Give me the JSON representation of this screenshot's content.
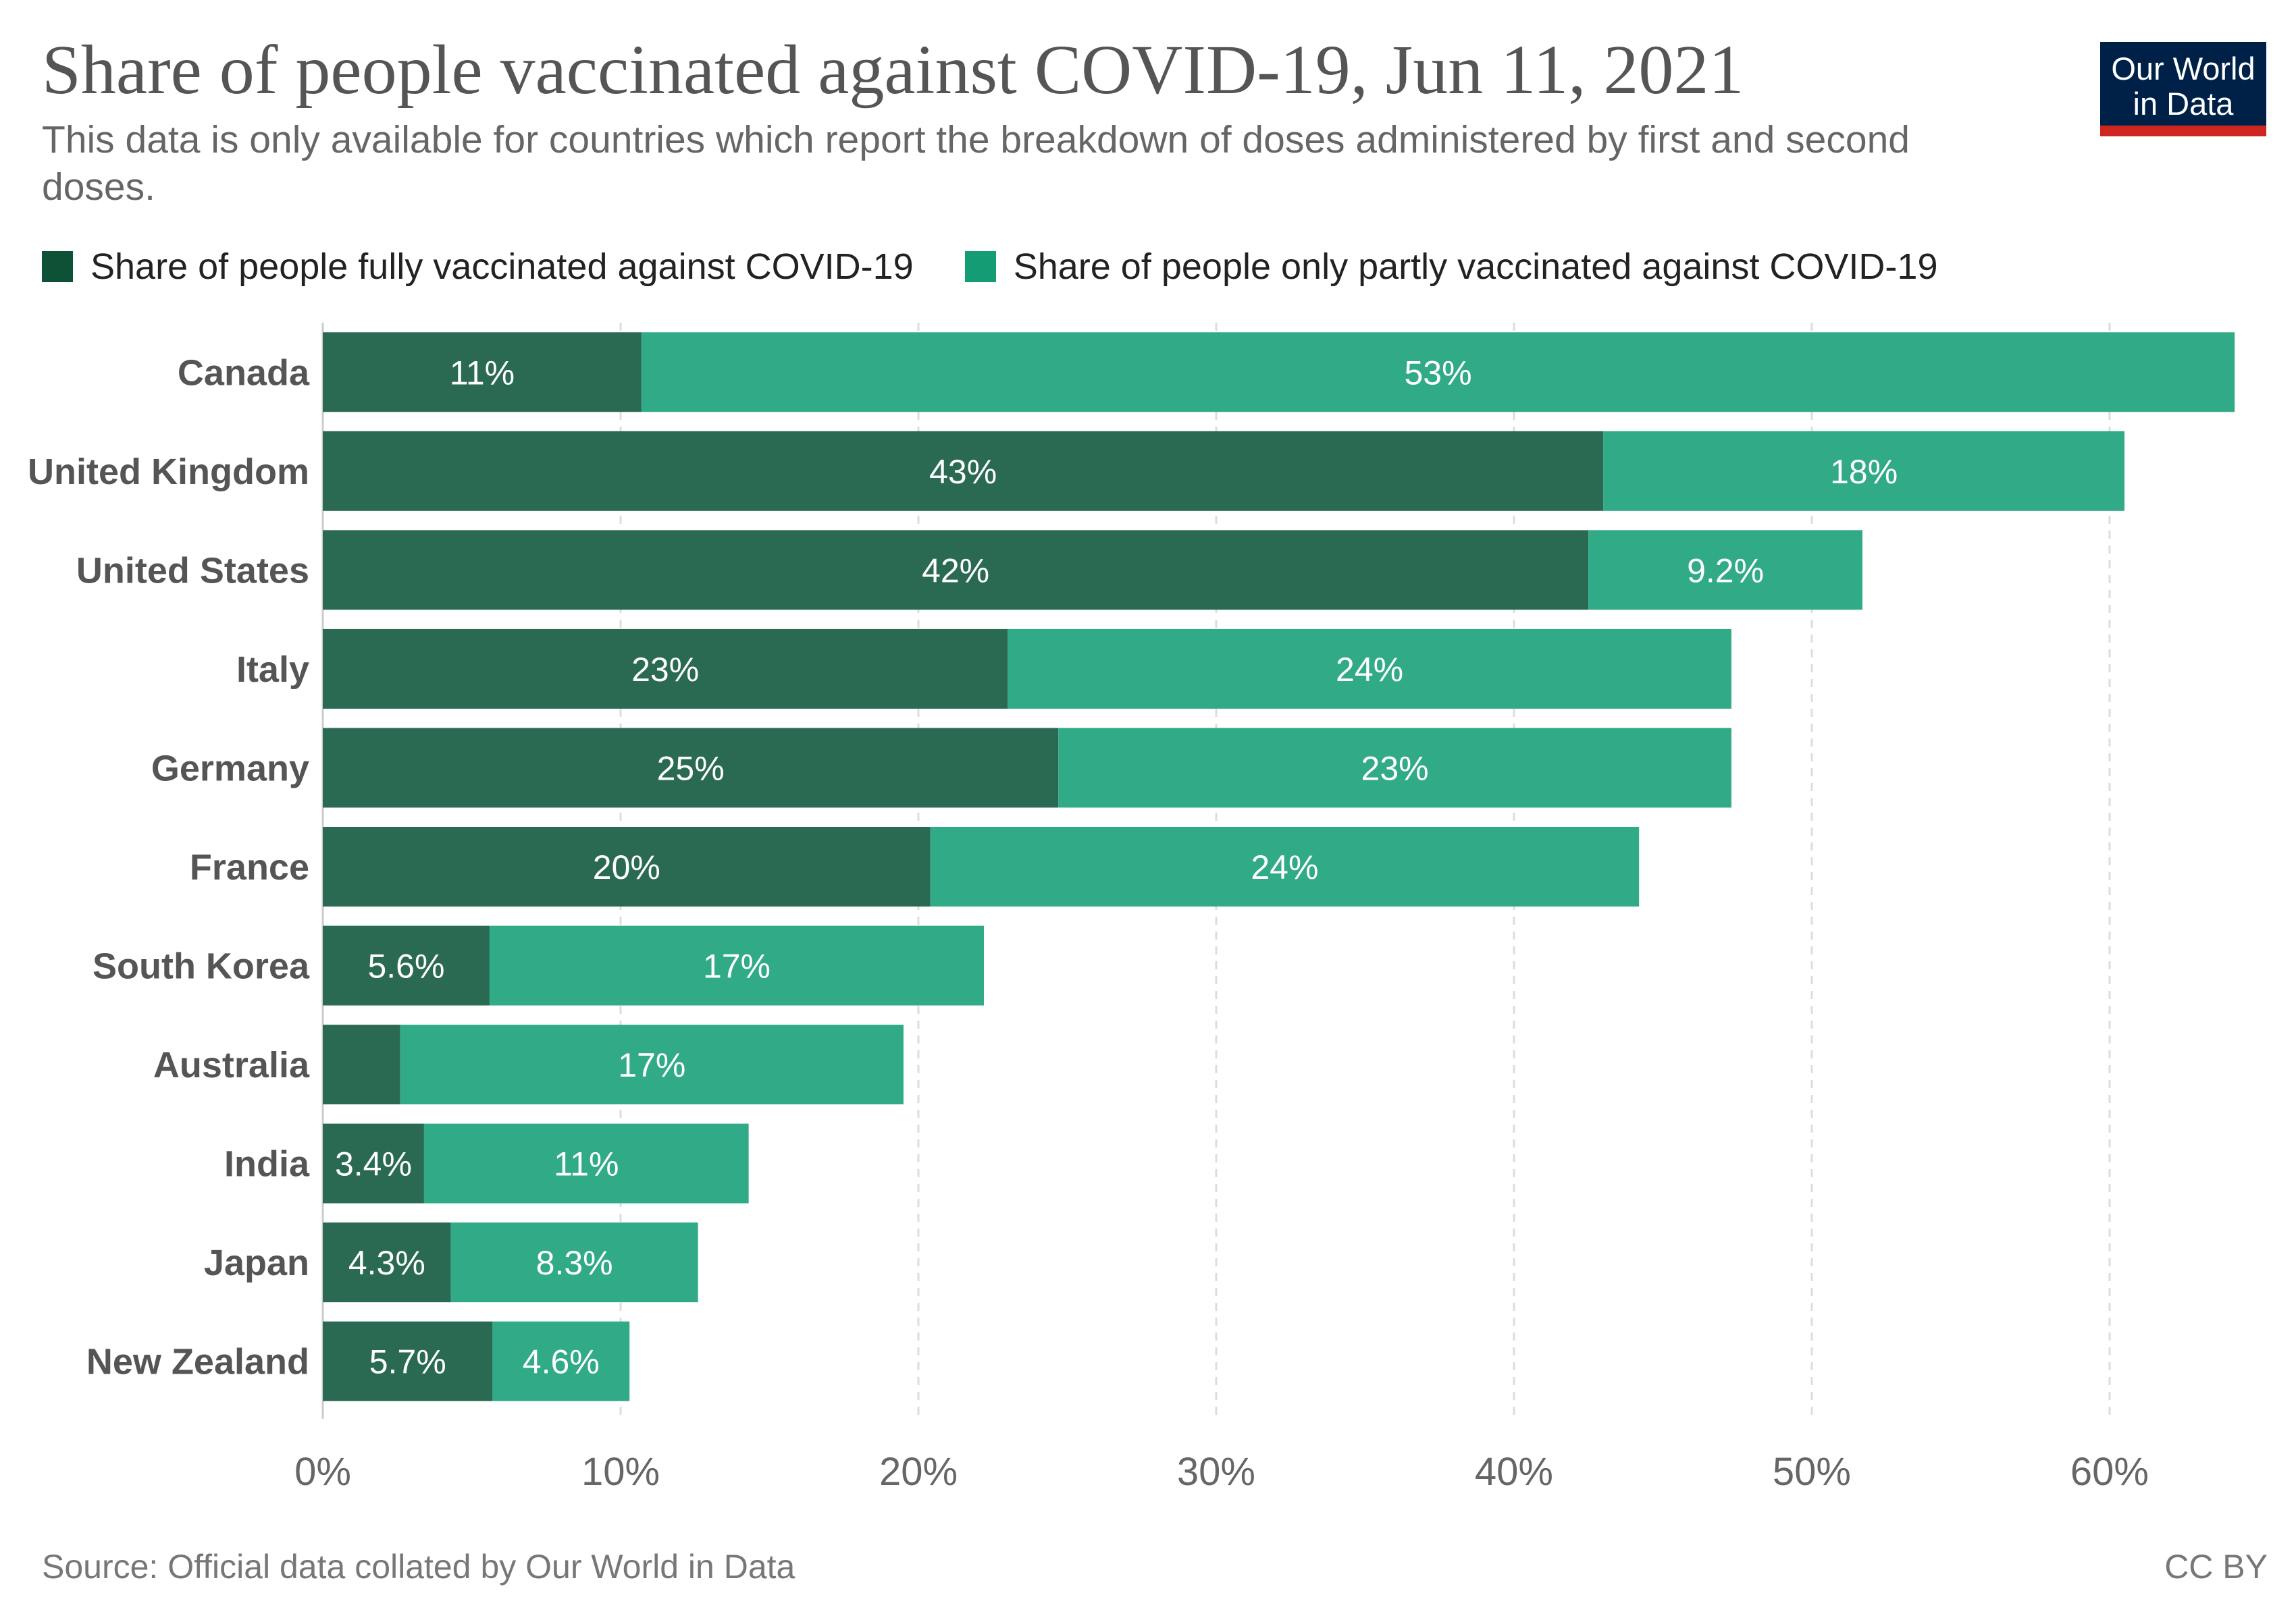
{
  "title": "Share of people vaccinated against COVID-19, Jun 11, 2021",
  "subtitle": "This data is only available for countries which report the breakdown of doses administered by first and second doses.",
  "logo": {
    "line1": "Our World",
    "line2": "in Data"
  },
  "source": "Source: Official data collated by Our World in Data",
  "license": "CC BY",
  "colors": {
    "fully": "#2a6a53",
    "partly": "#31aa87",
    "fully_legend": "#0d5137",
    "partly_legend": "#149d74",
    "grid": "#dddddd",
    "axis": "#666666"
  },
  "chart_data": {
    "type": "bar",
    "orientation": "horizontal",
    "stacked": true,
    "categories": [
      "Canada",
      "United Kingdom",
      "United States",
      "Italy",
      "Germany",
      "France",
      "South Korea",
      "Australia",
      "India",
      "Japan",
      "New Zealand"
    ],
    "series": [
      {
        "name": "Share of people fully vaccinated against COVID-19",
        "values": [
          10.7,
          43.0,
          42.5,
          23.0,
          24.7,
          20.4,
          5.6,
          2.6,
          3.4,
          4.3,
          5.7
        ],
        "labels": [
          "11%",
          "43%",
          "42%",
          "23%",
          "25%",
          "20%",
          "5.6%",
          "",
          "3.4%",
          "4.3%",
          "5.7%"
        ]
      },
      {
        "name": "Share of people only partly vaccinated against COVID-19",
        "values": [
          53.5,
          17.5,
          9.2,
          24.3,
          22.6,
          23.8,
          16.6,
          16.9,
          10.9,
          8.3,
          4.6
        ],
        "labels": [
          "53%",
          "18%",
          "9.2%",
          "24%",
          "23%",
          "24%",
          "17%",
          "17%",
          "11%",
          "8.3%",
          "4.6%"
        ]
      }
    ],
    "xlim": [
      0,
      64.4
    ],
    "x_ticks": [
      0,
      10,
      20,
      30,
      40,
      50,
      60
    ],
    "x_tick_labels": [
      "0%",
      "10%",
      "20%",
      "30%",
      "40%",
      "50%",
      "60%"
    ],
    "grid": true,
    "legend_position": "top-left"
  }
}
